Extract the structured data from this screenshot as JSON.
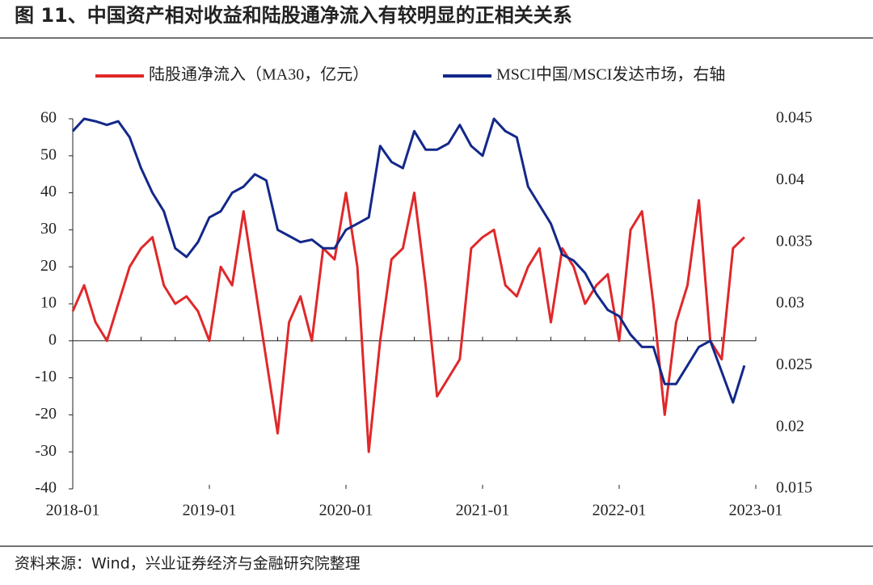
{
  "chart_data": {
    "type": "line",
    "title": "图 11、中国资产相对收益和陆股通净流入有较明显的正相关关系",
    "source": "资料来源：Wind，兴业证券经济与金融研究院整理",
    "x": [
      "2018-01",
      "2018-02",
      "2018-03",
      "2018-04",
      "2018-05",
      "2018-06",
      "2018-07",
      "2018-08",
      "2018-09",
      "2018-10",
      "2018-11",
      "2018-12",
      "2019-01",
      "2019-02",
      "2019-03",
      "2019-04",
      "2019-05",
      "2019-06",
      "2019-07",
      "2019-08",
      "2019-09",
      "2019-10",
      "2019-11",
      "2019-12",
      "2020-01",
      "2020-02",
      "2020-03",
      "2020-04",
      "2020-05",
      "2020-06",
      "2020-07",
      "2020-08",
      "2020-09",
      "2020-10",
      "2020-11",
      "2020-12",
      "2021-01",
      "2021-02",
      "2021-03",
      "2021-04",
      "2021-05",
      "2021-06",
      "2021-07",
      "2021-08",
      "2021-09",
      "2021-10",
      "2021-11",
      "2021-12",
      "2022-01",
      "2022-02",
      "2022-03",
      "2022-04",
      "2022-05",
      "2022-06",
      "2022-07",
      "2022-08",
      "2022-09",
      "2022-10",
      "2022-11",
      "2022-12",
      "2023-01"
    ],
    "xticks": [
      "2018-01",
      "2019-01",
      "2020-01",
      "2021-01",
      "2022-01",
      "2023-01"
    ],
    "series": [
      {
        "name": "陆股通净流入（MA30，亿元）",
        "color": "#e0282a",
        "axis": "y",
        "values": [
          8,
          15,
          5,
          0,
          10,
          20,
          25,
          28,
          15,
          10,
          12,
          8,
          0,
          20,
          15,
          35,
          15,
          -5,
          -25,
          5,
          12,
          0,
          25,
          22,
          40,
          20,
          -30,
          0,
          22,
          25,
          40,
          15,
          -15,
          -10,
          -5,
          25,
          28,
          30,
          15,
          12,
          20,
          25,
          5,
          25,
          20,
          10,
          15,
          18,
          0,
          30,
          35,
          10,
          -20,
          5,
          15,
          38,
          0,
          -5,
          25,
          28,
          null
        ]
      },
      {
        "name": "MSCI中国/MSCI发达市场，右轴",
        "color": "#13288a",
        "axis": "y2",
        "values": [
          0.044,
          0.045,
          0.0448,
          0.0445,
          0.0448,
          0.0435,
          0.041,
          0.039,
          0.0375,
          0.0345,
          0.0338,
          0.035,
          0.037,
          0.0375,
          0.039,
          0.0395,
          0.0405,
          0.04,
          0.036,
          0.0355,
          0.035,
          0.0352,
          0.0345,
          0.0345,
          0.036,
          0.0365,
          0.037,
          0.0428,
          0.0415,
          0.041,
          0.044,
          0.0425,
          0.0425,
          0.043,
          0.0445,
          0.0428,
          0.042,
          0.045,
          0.044,
          0.0435,
          0.0395,
          0.038,
          0.0365,
          0.034,
          0.0335,
          0.0325,
          0.0308,
          0.0295,
          0.029,
          0.0275,
          0.0265,
          0.0265,
          0.0235,
          0.0235,
          0.025,
          0.0265,
          0.027,
          0.0245,
          0.022,
          0.025,
          null
        ]
      }
    ],
    "ylim": [
      -40,
      60
    ],
    "yticks": [
      -40,
      -30,
      -20,
      -10,
      0,
      10,
      20,
      30,
      40,
      50,
      60
    ],
    "y2lim": [
      0.015,
      0.045
    ],
    "y2ticks": [
      0.015,
      0.02,
      0.025,
      0.03,
      0.035,
      0.04,
      0.045
    ]
  }
}
